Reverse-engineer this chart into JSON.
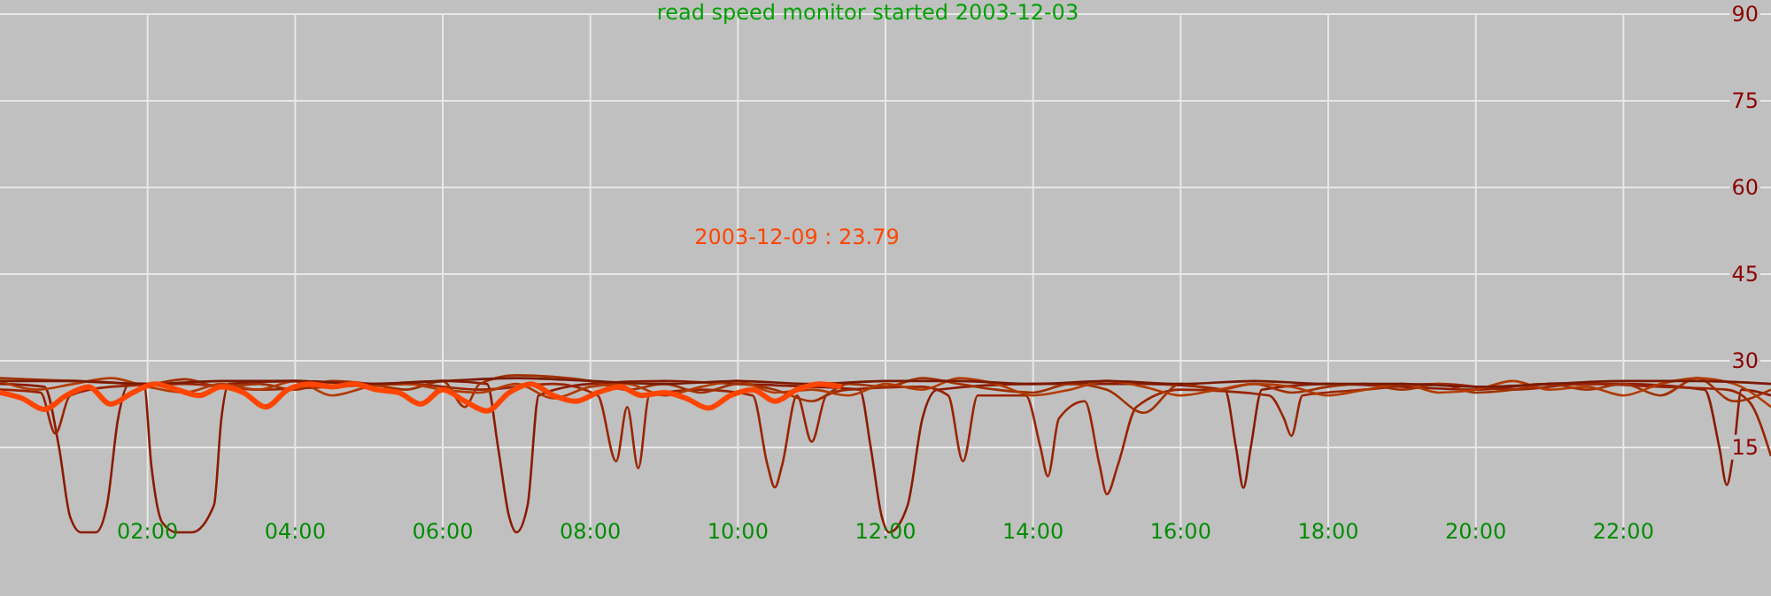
{
  "chart_data": {
    "type": "line",
    "title": "read speed monitor started 2003-12-03",
    "annotations": [
      "2003-12-09 : 23.79"
    ],
    "xlim": [
      0,
      24
    ],
    "ylim": [
      0,
      90
    ],
    "xticks": [
      {
        "value": 2,
        "label": "02:00"
      },
      {
        "value": 4,
        "label": "04:00"
      },
      {
        "value": 6,
        "label": "06:00"
      },
      {
        "value": 8,
        "label": "08:00"
      },
      {
        "value": 10,
        "label": "10:00"
      },
      {
        "value": 12,
        "label": "12:00"
      },
      {
        "value": 14,
        "label": "14:00"
      },
      {
        "value": 16,
        "label": "16:00"
      },
      {
        "value": 18,
        "label": "18:00"
      },
      {
        "value": 20,
        "label": "20:00"
      },
      {
        "value": 22,
        "label": "22:00"
      }
    ],
    "yticks": [
      15,
      30,
      45,
      60,
      75,
      90
    ],
    "grid": true,
    "marker": "none",
    "line_style": "solid",
    "series": [
      {
        "color": "#8b1a00",
        "x": [
          0,
          0.6,
          0.8,
          0.95,
          1.1,
          1.3,
          1.45,
          1.6,
          1.75,
          1.95,
          2.05,
          2.2,
          2.4,
          2.6,
          2.9,
          3.0,
          3.1,
          4,
          5,
          6,
          6.6,
          6.75,
          6.9,
          7.0,
          7.15,
          7.3,
          8,
          9,
          10,
          11,
          11.65,
          11.8,
          11.95,
          12.05,
          12.3,
          12.5,
          12.7,
          14,
          15.5,
          16.6,
          16.75,
          16.85,
          16.95,
          17.1,
          18,
          19,
          20,
          21,
          22,
          23.1,
          23.3,
          23.4,
          23.5,
          23.6,
          24
        ],
        "values": [
          26,
          25.5,
          15,
          3,
          0.3,
          0.3,
          5,
          20,
          26,
          26,
          12,
          2,
          0.3,
          0.3,
          5,
          20,
          26,
          26.5,
          26,
          26.5,
          26,
          15,
          3,
          0.3,
          5,
          24,
          26,
          26.5,
          26,
          25.5,
          25,
          15,
          3,
          0.3,
          5,
          20,
          25,
          26,
          26,
          25,
          15,
          8,
          15,
          25,
          26,
          25.5,
          25,
          26,
          26,
          25,
          15,
          8.5,
          15,
          25,
          24
        ]
      },
      {
        "color": "#9a2400",
        "x": [
          0,
          0.55,
          0.75,
          0.95,
          1.5,
          2.5,
          3.5,
          4.5,
          5.5,
          6.5,
          7.5,
          8.1,
          8.35,
          8.5,
          8.65,
          8.8,
          9.5,
          10.2,
          10.4,
          10.5,
          10.6,
          10.8,
          11,
          11.2,
          11.5,
          12.5,
          12.85,
          13.05,
          13.25,
          13.9,
          14.1,
          14.2,
          14.35,
          14.7,
          14.9,
          15.0,
          15.15,
          15.4,
          16,
          17.2,
          17.4,
          17.5,
          17.65,
          18.5,
          19.5,
          20.5,
          21.5,
          22.5,
          23.4,
          23.7,
          24
        ],
        "values": [
          25,
          24.5,
          17.4,
          24,
          25.5,
          26,
          25,
          25.5,
          26,
          25,
          26,
          24,
          12.6,
          22,
          11.4,
          24,
          25,
          24,
          12,
          8.1,
          12,
          24,
          16,
          24,
          25,
          25.5,
          24,
          12.6,
          24,
          24,
          15,
          10,
          20,
          23,
          12,
          6.9,
          12,
          22,
          25,
          24,
          20,
          17,
          24,
          25,
          26,
          25,
          26,
          25.5,
          25,
          23,
          13.5
        ]
      },
      {
        "color": "#a03000",
        "x": [
          0,
          1,
          2,
          2.5,
          3,
          3.5,
          4,
          4.5,
          5,
          5.5,
          6,
          6.3,
          6.5,
          7,
          8,
          8.5,
          9,
          9.5,
          10,
          10.5,
          11,
          11.5,
          12,
          12.5,
          13,
          13.5,
          14,
          14.5,
          15,
          15.5,
          16,
          16.5,
          17,
          17.5,
          18,
          18.5,
          19,
          19.5,
          20,
          20.5,
          21,
          21.5,
          22,
          22.5,
          23,
          23.5,
          24
        ],
        "values": [
          27,
          26.5,
          26,
          26.8,
          25.5,
          26,
          25,
          26.5,
          26,
          25,
          26.5,
          22,
          26,
          27.5,
          26.5,
          25,
          26,
          24.5,
          26,
          25,
          23,
          26,
          25.5,
          27,
          26,
          25,
          24.5,
          26,
          25,
          21,
          26,
          25,
          26,
          24.5,
          25.5,
          26,
          25,
          26,
          24.5,
          25,
          26,
          25,
          26,
          24,
          27,
          23,
          25
        ]
      },
      {
        "color": "#b33a00",
        "x": [
          0,
          0.5,
          1,
          1.5,
          2,
          2.5,
          3,
          3.5,
          4,
          4.5,
          5,
          5.5,
          6,
          6.5,
          7,
          7.5,
          8,
          8.5,
          9,
          9.5,
          10,
          10.5,
          11,
          11.5,
          12,
          12.5,
          13,
          13.5,
          14,
          14.5,
          15,
          15.5,
          16,
          16.5,
          17,
          17.5,
          18,
          18.5,
          19,
          19.5,
          20,
          20.5,
          21,
          21.5,
          22,
          22.5,
          23,
          23.5,
          24
        ],
        "values": [
          26.5,
          25,
          26,
          27,
          25.5,
          24.5,
          26,
          25,
          26.5,
          24,
          25.5,
          26,
          25,
          24.5,
          26,
          23.5,
          25.5,
          26,
          24,
          25.5,
          26.5,
          24.5,
          25,
          24,
          26,
          25,
          27,
          26,
          24,
          25,
          26.5,
          25.5,
          24,
          25,
          26,
          25.5,
          24,
          25,
          26,
          24.5,
          25,
          26.5,
          25,
          25.5,
          24,
          26,
          27,
          26,
          22
        ]
      },
      {
        "color": "#7a1a00",
        "x": [
          0,
          1,
          2,
          3,
          4,
          5,
          6,
          7,
          8,
          9,
          10,
          11,
          12,
          13,
          14,
          15,
          16,
          17,
          18,
          19,
          20,
          21,
          22,
          23,
          24
        ],
        "values": [
          26.5,
          26.5,
          26,
          26.5,
          26.5,
          26,
          26.5,
          27,
          26.5,
          26,
          26.5,
          26,
          26.5,
          26.5,
          26,
          26.5,
          26,
          26.5,
          26,
          26,
          25.5,
          26,
          26.5,
          26.5,
          26
        ]
      },
      {
        "color": "#ff4500",
        "x": [
          0,
          0.3,
          0.6,
          0.9,
          1.2,
          1.5,
          1.8,
          2.1,
          2.4,
          2.7,
          3.0,
          3.3,
          3.6,
          3.9,
          4.2,
          4.5,
          4.8,
          5.1,
          5.4,
          5.7,
          6.0,
          6.3,
          6.6,
          6.9,
          7.2,
          7.5,
          7.8,
          8.1,
          8.4,
          8.7,
          9.0,
          9.3,
          9.6,
          9.9,
          10.2,
          10.5,
          10.8,
          11.1,
          11.4
        ],
        "values": [
          24.5,
          23.5,
          21.6,
          24,
          25.5,
          22.5,
          24.5,
          26,
          25,
          24,
          25.5,
          24.5,
          22,
          25,
          26,
          25.5,
          26,
          25,
          24.5,
          22.5,
          25,
          23,
          21.3,
          24.5,
          26,
          24,
          23,
          24.5,
          25.5,
          24,
          24.5,
          23.5,
          21.8,
          24,
          25,
          23,
          25,
          26,
          25.5
        ]
      }
    ]
  }
}
